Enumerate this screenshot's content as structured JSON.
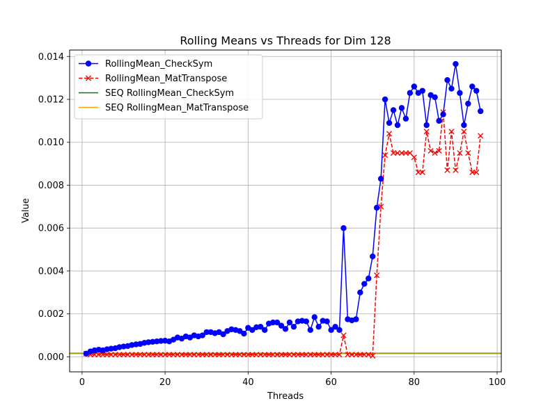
{
  "chart_data": {
    "type": "line",
    "title": "Rolling Means vs Threads for Dim 128",
    "xlabel": "Threads",
    "ylabel": "Value",
    "xlim": [
      -3,
      101
    ],
    "ylim": [
      -0.0007,
      0.0143
    ],
    "xticks": [
      0,
      20,
      40,
      60,
      80,
      100
    ],
    "yticks": [
      0.0,
      0.002,
      0.004,
      0.006,
      0.008,
      0.01,
      0.012,
      0.014
    ],
    "ytick_labels": [
      "0.000",
      "0.002",
      "0.004",
      "0.006",
      "0.008",
      "0.010",
      "0.012",
      "0.014"
    ],
    "grid": true,
    "legend_position": "upper-left",
    "x": [
      1,
      2,
      3,
      4,
      5,
      6,
      7,
      8,
      9,
      10,
      11,
      12,
      13,
      14,
      15,
      16,
      17,
      18,
      19,
      20,
      21,
      22,
      23,
      24,
      25,
      26,
      27,
      28,
      29,
      30,
      31,
      32,
      33,
      34,
      35,
      36,
      37,
      38,
      39,
      40,
      41,
      42,
      43,
      44,
      45,
      46,
      47,
      48,
      49,
      50,
      51,
      52,
      53,
      54,
      55,
      56,
      57,
      58,
      59,
      60,
      61,
      62,
      63,
      64,
      65,
      66,
      67,
      68,
      69,
      70,
      71,
      72,
      73,
      74,
      75,
      76,
      77,
      78,
      79,
      80,
      81,
      82,
      83,
      84,
      85,
      86,
      87,
      88,
      89,
      90,
      91,
      92,
      93,
      94,
      95,
      96
    ],
    "series": [
      {
        "name": "RollingMean_CheckSym",
        "color": "#0000ff",
        "linestyle": "solid",
        "marker": "circle",
        "values": [
          0.00015,
          0.00025,
          0.0003,
          0.00033,
          0.0003,
          0.00035,
          0.00038,
          0.0004,
          0.00045,
          0.00048,
          0.0005,
          0.00055,
          0.00058,
          0.0006,
          0.00065,
          0.00068,
          0.0007,
          0.00072,
          0.00074,
          0.00075,
          0.00072,
          0.0008,
          0.0009,
          0.00085,
          0.00095,
          0.0009,
          0.001,
          0.00095,
          0.001,
          0.00115,
          0.00115,
          0.0011,
          0.00115,
          0.00105,
          0.0012,
          0.00128,
          0.00125,
          0.0012,
          0.00108,
          0.00135,
          0.00125,
          0.00138,
          0.0014,
          0.00125,
          0.00155,
          0.0016,
          0.0016,
          0.00145,
          0.0013,
          0.0016,
          0.0014,
          0.00165,
          0.00168,
          0.00165,
          0.00125,
          0.00185,
          0.0014,
          0.00168,
          0.00165,
          0.00125,
          0.0014,
          0.00125,
          0.006,
          0.00175,
          0.0017,
          0.00175,
          0.003,
          0.0034,
          0.00365,
          0.00468,
          0.00695,
          0.0083,
          0.012,
          0.0109,
          0.0115,
          0.0108,
          0.0116,
          0.0111,
          0.0123,
          0.0126,
          0.0123,
          0.0124,
          0.0108,
          0.0122,
          0.0121,
          0.011,
          0.0113,
          0.0129,
          0.0125,
          0.01365,
          0.0123,
          0.0108,
          0.0118,
          0.0126,
          0.0124,
          0.01145
        ]
      },
      {
        "name": "RollingMean_MatTranspose",
        "color": "#ff0000",
        "linestyle": "dashed",
        "marker": "x",
        "values": [
          0.00015,
          0.0001,
          0.0001,
          0.0001,
          0.0001,
          0.0001,
          0.0001,
          0.0001,
          0.0001,
          0.0001,
          0.0001,
          0.0001,
          0.0001,
          0.0001,
          0.0001,
          0.0001,
          0.0001,
          0.0001,
          0.0001,
          0.0001,
          0.0001,
          0.0001,
          0.0001,
          0.0001,
          0.0001,
          0.0001,
          0.0001,
          0.0001,
          0.0001,
          0.0001,
          0.0001,
          0.0001,
          0.0001,
          0.0001,
          0.0001,
          0.0001,
          0.0001,
          0.0001,
          0.0001,
          0.0001,
          0.0001,
          0.0001,
          0.0001,
          0.0001,
          0.0001,
          0.0001,
          0.0001,
          0.0001,
          0.0001,
          0.0001,
          0.0001,
          0.0001,
          0.0001,
          0.0001,
          0.0001,
          0.0001,
          0.0001,
          0.0001,
          0.0001,
          0.0001,
          0.0001,
          0.0001,
          0.001,
          0.0001,
          0.0001,
          0.0001,
          0.0001,
          0.0001,
          0.0001,
          5e-05,
          0.0038,
          0.007,
          0.0094,
          0.0104,
          0.0095,
          0.0095,
          0.0095,
          0.0095,
          0.0095,
          0.0093,
          0.0086,
          0.0086,
          0.0105,
          0.0096,
          0.0095,
          0.0096,
          0.0114,
          0.0087,
          0.0105,
          0.0087,
          0.0095,
          0.0105,
          0.0095,
          0.0086,
          0.0086,
          0.0103
        ]
      },
      {
        "name": "SEQ RollingMean_CheckSym",
        "color": "#008000",
        "linestyle": "solid",
        "marker": "none",
        "constant": 0.00016
      },
      {
        "name": "SEQ RollingMean_MatTranspose",
        "color": "#ffa500",
        "linestyle": "solid",
        "marker": "none",
        "constant": 0.00018
      }
    ]
  }
}
